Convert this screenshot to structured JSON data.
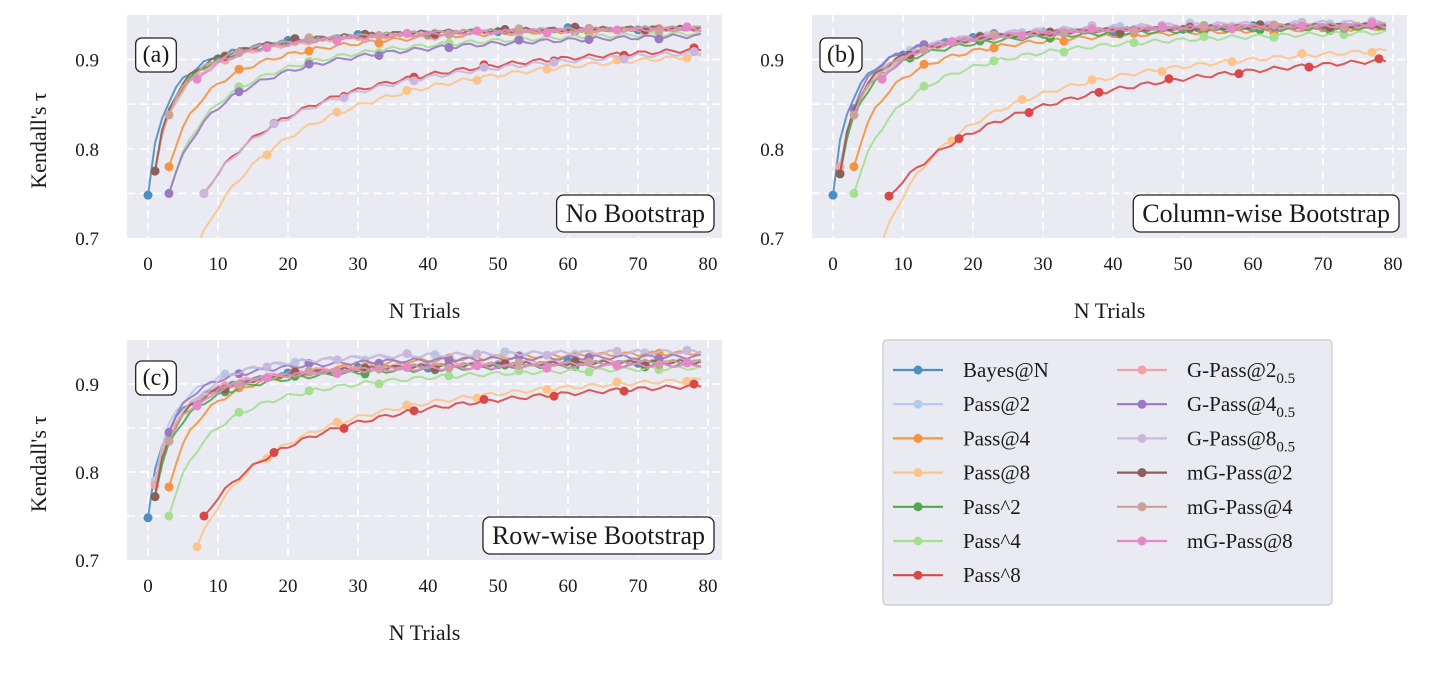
{
  "legend": {
    "entries": [
      {
        "key": "bayes",
        "label": "Bayes@N",
        "sub": "",
        "color": "#4e8fc2"
      },
      {
        "key": "pass2",
        "label": "Pass@2",
        "sub": "",
        "color": "#b2cbe8"
      },
      {
        "key": "pass4",
        "label": "Pass@4",
        "sub": "",
        "color": "#f39440"
      },
      {
        "key": "pass8",
        "label": "Pass@8",
        "sub": "",
        "color": "#fcc48a"
      },
      {
        "key": "passc2",
        "label": "Pass^2",
        "sub": "",
        "color": "#4fa84b"
      },
      {
        "key": "passc4",
        "label": "Pass^4",
        "sub": "",
        "color": "#a5df90"
      },
      {
        "key": "passc8",
        "label": "Pass^8",
        "sub": "",
        "color": "#d94848"
      },
      {
        "key": "gpass2",
        "label": "G-Pass@2",
        "sub": "0.5",
        "color": "#f4a3a3"
      },
      {
        "key": "gpass4",
        "label": "G-Pass@4",
        "sub": "0.5",
        "color": "#9a78c4"
      },
      {
        "key": "gpass8",
        "label": "G-Pass@8",
        "sub": "0.5",
        "color": "#c9b8dc"
      },
      {
        "key": "mg2",
        "label": "mG-Pass@2",
        "sub": "",
        "color": "#8e5f57"
      },
      {
        "key": "mg4",
        "label": "mG-Pass@4",
        "sub": "",
        "color": "#c9a39a"
      },
      {
        "key": "mg8",
        "label": "mG-Pass@8",
        "sub": "",
        "color": "#e787c8"
      }
    ]
  },
  "chart_data": [
    {
      "type": "line",
      "panel_tag": "(a)",
      "title": "No Bootstrap",
      "xlabel": "N Trials",
      "ylabel": "Kendall's τ",
      "xlim": [
        -3,
        82
      ],
      "ylim": [
        0.7,
        0.95
      ],
      "xticks": [
        "0",
        "10",
        "20",
        "30",
        "40",
        "50",
        "60",
        "70",
        "80"
      ],
      "yticks": [
        "0.7",
        "0.8",
        "0.9"
      ],
      "grid": true,
      "series": [
        {
          "key": "bayes",
          "start": 0,
          "y0": 0.748,
          "yend": 0.94,
          "k": 2.6
        },
        {
          "key": "pass2",
          "start": 1,
          "y0": 0.775,
          "yend": 0.94,
          "k": 3.2
        },
        {
          "key": "pass4",
          "start": 3,
          "y0": 0.78,
          "yend": 0.946,
          "k": 6.0
        },
        {
          "key": "pass8",
          "start": 7,
          "y0": 0.69,
          "yend": 0.944,
          "k": 15.0
        },
        {
          "key": "passc2",
          "start": 1,
          "y0": 0.775,
          "yend": 0.94,
          "k": 3.2
        },
        {
          "key": "passc4",
          "start": 3,
          "y0": 0.75,
          "yend": 0.944,
          "k": 7.0
        },
        {
          "key": "passc8",
          "start": 8,
          "y0": 0.75,
          "yend": 0.944,
          "k": 16.0
        },
        {
          "key": "gpass2",
          "start": 1,
          "y0": 0.775,
          "yend": 0.94,
          "k": 3.5
        },
        {
          "key": "gpass4",
          "start": 3,
          "y0": 0.75,
          "yend": 0.942,
          "k": 7.5
        },
        {
          "key": "gpass8",
          "start": 8,
          "y0": 0.75,
          "yend": 0.94,
          "k": 16.0
        },
        {
          "key": "mg2",
          "start": 1,
          "y0": 0.775,
          "yend": 0.941,
          "k": 3.0
        },
        {
          "key": "mg4",
          "start": 3,
          "y0": 0.838,
          "yend": 0.941,
          "k": 5.0
        },
        {
          "key": "mg8",
          "start": 7,
          "y0": 0.878,
          "yend": 0.94,
          "k": 8.0
        }
      ]
    },
    {
      "type": "line",
      "panel_tag": "(b)",
      "title": "Column-wise Bootstrap",
      "xlabel": "N Trials",
      "ylabel": "",
      "xlim": [
        -3,
        82
      ],
      "ylim": [
        0.7,
        0.95
      ],
      "xticks": [
        "0",
        "10",
        "20",
        "30",
        "40",
        "50",
        "60",
        "70",
        "80"
      ],
      "yticks": [
        "0.7",
        "0.8",
        "0.9"
      ],
      "grid": true,
      "series": [
        {
          "key": "bayes",
          "start": 0,
          "y0": 0.748,
          "yend": 0.942,
          "k": 2.4
        },
        {
          "key": "pass2",
          "start": 1,
          "y0": 0.772,
          "yend": 0.948,
          "k": 3.2
        },
        {
          "key": "pass4",
          "start": 3,
          "y0": 0.78,
          "yend": 0.944,
          "k": 5.0
        },
        {
          "key": "pass8",
          "start": 7,
          "y0": 0.695,
          "yend": 0.942,
          "k": 12.0
        },
        {
          "key": "passc2",
          "start": 1,
          "y0": 0.772,
          "yend": 0.942,
          "k": 3.5
        },
        {
          "key": "passc4",
          "start": 3,
          "y0": 0.75,
          "yend": 0.945,
          "k": 7.0
        },
        {
          "key": "passc8",
          "start": 8,
          "y0": 0.747,
          "yend": 0.942,
          "k": 22.0
        },
        {
          "key": "gpass2",
          "start": 1,
          "y0": 0.78,
          "yend": 0.945,
          "k": 3.5
        },
        {
          "key": "gpass4",
          "start": 3,
          "y0": 0.845,
          "yend": 0.942,
          "k": 4.0
        },
        {
          "key": "gpass8",
          "start": 7,
          "y0": 0.88,
          "yend": 0.946,
          "k": 6.0
        },
        {
          "key": "mg2",
          "start": 1,
          "y0": 0.772,
          "yend": 0.944,
          "k": 3.0
        },
        {
          "key": "mg4",
          "start": 3,
          "y0": 0.838,
          "yend": 0.945,
          "k": 5.0
        },
        {
          "key": "mg8",
          "start": 7,
          "y0": 0.878,
          "yend": 0.943,
          "k": 6.0
        }
      ]
    },
    {
      "type": "line",
      "panel_tag": "(c)",
      "title": "Row-wise Bootstrap",
      "xlabel": "N Trials",
      "ylabel": "Kendall's τ",
      "xlim": [
        -3,
        82
      ],
      "ylim": [
        0.7,
        0.95
      ],
      "xticks": [
        "0",
        "10",
        "20",
        "30",
        "40",
        "50",
        "60",
        "70",
        "80"
      ],
      "yticks": [
        "0.7",
        "0.8",
        "0.9"
      ],
      "grid": true,
      "series": [
        {
          "key": "bayes",
          "start": 0,
          "y0": 0.748,
          "yend": 0.93,
          "k": 2.6
        },
        {
          "key": "pass2",
          "start": 1,
          "y0": 0.79,
          "yend": 0.942,
          "k": 3.0
        },
        {
          "key": "pass4",
          "start": 3,
          "y0": 0.783,
          "yend": 0.944,
          "k": 5.0
        },
        {
          "key": "pass8",
          "start": 7,
          "y0": 0.715,
          "yend": 0.933,
          "k": 12.0
        },
        {
          "key": "passc2",
          "start": 1,
          "y0": 0.772,
          "yend": 0.928,
          "k": 3.5
        },
        {
          "key": "passc4",
          "start": 3,
          "y0": 0.75,
          "yend": 0.93,
          "k": 6.0
        },
        {
          "key": "passc8",
          "start": 8,
          "y0": 0.75,
          "yend": 0.928,
          "k": 16.0
        },
        {
          "key": "gpass2",
          "start": 1,
          "y0": 0.785,
          "yend": 0.932,
          "k": 3.2
        },
        {
          "key": "gpass4",
          "start": 3,
          "y0": 0.845,
          "yend": 0.935,
          "k": 4.0
        },
        {
          "key": "gpass8",
          "start": 7,
          "y0": 0.88,
          "yend": 0.94,
          "k": 5.0
        },
        {
          "key": "mg2",
          "start": 1,
          "y0": 0.772,
          "yend": 0.93,
          "k": 3.0
        },
        {
          "key": "mg4",
          "start": 3,
          "y0": 0.835,
          "yend": 0.93,
          "k": 5.0
        },
        {
          "key": "mg8",
          "start": 7,
          "y0": 0.875,
          "yend": 0.925,
          "k": 6.0
        }
      ]
    }
  ]
}
